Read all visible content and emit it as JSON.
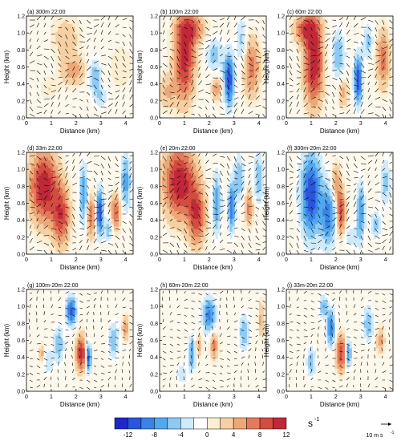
{
  "figure": {
    "x_axis_label": "Distance (km)",
    "y_axis_label": "Height (km)",
    "x_ticks": [
      "0",
      "1",
      "2",
      "3",
      "4"
    ],
    "y_ticks": [
      "0.0",
      "0.2",
      "0.4",
      "0.6",
      "0.8",
      "1.0",
      "1.2"
    ]
  },
  "colorbar": {
    "unit": "s",
    "unit_exponent": "-1",
    "tick_labels": [
      "-12",
      "-8",
      "-4",
      "0",
      "4",
      "8",
      "12"
    ],
    "colors": [
      "#1e28c8",
      "#2a55dc",
      "#3a82e6",
      "#52a8ee",
      "#8ccaf4",
      "#cfeafa",
      "#ffffff",
      "#fbeed2",
      "#f6d0a2",
      "#eea878",
      "#e47a5a",
      "#d44c40",
      "#c0283a"
    ]
  },
  "reference_vector": {
    "label": "10 m s",
    "exponent": "-1"
  },
  "chart_data": [
    {
      "type": "heatmap",
      "title": "(a) 300m 22:00",
      "xlim": [
        0,
        4.3
      ],
      "ylim": [
        0,
        1.2
      ],
      "xlabel": "Distance (km)",
      "ylabel": "Height (km)",
      "features": [
        {
          "x": 1.9,
          "y": 0.55,
          "sx": 0.35,
          "sy": 0.12,
          "value": 5
        },
        {
          "x": 1.6,
          "y": 0.95,
          "sx": 0.45,
          "sy": 0.2,
          "value": 3
        },
        {
          "x": 2.75,
          "y": 0.5,
          "sx": 0.18,
          "sy": 0.14,
          "value": -6
        },
        {
          "x": 3.0,
          "y": 0.25,
          "sx": 0.2,
          "sy": 0.1,
          "value": -4
        },
        {
          "x": 0.9,
          "y": 0.35,
          "sx": 0.3,
          "sy": 0.1,
          "value": 2
        },
        {
          "x": 3.8,
          "y": 0.6,
          "sx": 0.35,
          "sy": 0.2,
          "value": 2
        }
      ]
    },
    {
      "type": "heatmap",
      "title": "(b) 100m 22:00",
      "xlim": [
        0,
        4.3
      ],
      "ylim": [
        0,
        1.2
      ],
      "xlabel": "Distance (km)",
      "ylabel": "Height (km)",
      "features": [
        {
          "x": 1.0,
          "y": 0.7,
          "sx": 0.3,
          "sy": 0.35,
          "value": 11
        },
        {
          "x": 1.3,
          "y": 1.05,
          "sx": 0.4,
          "sy": 0.12,
          "value": 7
        },
        {
          "x": 0.3,
          "y": 0.3,
          "sx": 0.25,
          "sy": 0.15,
          "value": 4
        },
        {
          "x": 2.8,
          "y": 0.45,
          "sx": 0.15,
          "sy": 0.22,
          "value": -12
        },
        {
          "x": 2.3,
          "y": 0.35,
          "sx": 0.15,
          "sy": 0.1,
          "value": 6
        },
        {
          "x": 2.2,
          "y": 0.75,
          "sx": 0.25,
          "sy": 0.15,
          "value": -5
        },
        {
          "x": 3.7,
          "y": 0.6,
          "sx": 0.25,
          "sy": 0.25,
          "value": 7
        },
        {
          "x": 3.3,
          "y": 0.9,
          "sx": 0.15,
          "sy": 0.2,
          "value": -5
        }
      ]
    },
    {
      "type": "heatmap",
      "title": "(c) 60m 22:00",
      "xlim": [
        0,
        4.3
      ],
      "ylim": [
        0,
        1.2
      ],
      "xlabel": "Distance (km)",
      "ylabel": "Height (km)",
      "features": [
        {
          "x": 1.1,
          "y": 0.65,
          "sx": 0.28,
          "sy": 0.35,
          "value": 12
        },
        {
          "x": 0.8,
          "y": 1.05,
          "sx": 0.35,
          "sy": 0.12,
          "value": 8
        },
        {
          "x": 2.9,
          "y": 0.45,
          "sx": 0.12,
          "sy": 0.2,
          "value": -12
        },
        {
          "x": 2.3,
          "y": 0.3,
          "sx": 0.15,
          "sy": 0.12,
          "value": 5
        },
        {
          "x": 2.1,
          "y": 0.75,
          "sx": 0.2,
          "sy": 0.2,
          "value": -6
        },
        {
          "x": 3.9,
          "y": 0.7,
          "sx": 0.2,
          "sy": 0.25,
          "value": 7
        },
        {
          "x": 3.3,
          "y": 0.9,
          "sx": 0.15,
          "sy": 0.15,
          "value": -5
        }
      ]
    },
    {
      "type": "heatmap",
      "title": "(d) 33m 22:00",
      "xlim": [
        0,
        4.3
      ],
      "ylim": [
        0,
        1.2
      ],
      "xlabel": "Distance (km)",
      "ylabel": "Height (km)",
      "features": [
        {
          "x": 0.7,
          "y": 0.8,
          "sx": 0.4,
          "sy": 0.3,
          "value": 12
        },
        {
          "x": 1.4,
          "y": 0.45,
          "sx": 0.25,
          "sy": 0.25,
          "value": 9
        },
        {
          "x": 2.3,
          "y": 0.7,
          "sx": 0.12,
          "sy": 0.25,
          "value": -8
        },
        {
          "x": 2.95,
          "y": 0.5,
          "sx": 0.1,
          "sy": 0.2,
          "value": -12
        },
        {
          "x": 2.6,
          "y": 0.45,
          "sx": 0.12,
          "sy": 0.18,
          "value": 8
        },
        {
          "x": 3.6,
          "y": 0.5,
          "sx": 0.15,
          "sy": 0.15,
          "value": 8
        },
        {
          "x": 3.3,
          "y": 0.3,
          "sx": 0.12,
          "sy": 0.1,
          "value": -6
        },
        {
          "x": 4.0,
          "y": 0.85,
          "sx": 0.15,
          "sy": 0.25,
          "value": -7
        }
      ]
    },
    {
      "type": "heatmap",
      "title": "(e) 20m 22:00",
      "xlim": [
        0,
        4.3
      ],
      "ylim": [
        0,
        1.2
      ],
      "xlabel": "Distance (km)",
      "ylabel": "Height (km)",
      "features": [
        {
          "x": 0.8,
          "y": 0.85,
          "sx": 0.45,
          "sy": 0.3,
          "value": 12
        },
        {
          "x": 1.5,
          "y": 0.45,
          "sx": 0.25,
          "sy": 0.25,
          "value": 9
        },
        {
          "x": 2.3,
          "y": 0.6,
          "sx": 0.12,
          "sy": 0.25,
          "value": -8
        },
        {
          "x": 2.9,
          "y": 0.55,
          "sx": 0.1,
          "sy": 0.2,
          "value": -10
        },
        {
          "x": 3.6,
          "y": 0.55,
          "sx": 0.12,
          "sy": 0.15,
          "value": 7
        },
        {
          "x": 3.2,
          "y": 0.9,
          "sx": 0.15,
          "sy": 0.2,
          "value": -6
        },
        {
          "x": 4.0,
          "y": 0.9,
          "sx": 0.15,
          "sy": 0.2,
          "value": -6
        }
      ]
    },
    {
      "type": "heatmap",
      "title": "(f) 300m-20m 22:00",
      "xlim": [
        0,
        4.3
      ],
      "ylim": [
        0,
        1.2
      ],
      "xlabel": "Distance (km)",
      "ylabel": "Height (km)",
      "features": [
        {
          "x": 1.0,
          "y": 0.7,
          "sx": 0.3,
          "sy": 0.35,
          "value": -12
        },
        {
          "x": 1.7,
          "y": 0.45,
          "sx": 0.2,
          "sy": 0.25,
          "value": -9
        },
        {
          "x": 2.2,
          "y": 0.5,
          "sx": 0.12,
          "sy": 0.2,
          "value": 10
        },
        {
          "x": 2.0,
          "y": 0.85,
          "sx": 0.12,
          "sy": 0.15,
          "value": 6
        },
        {
          "x": 3.0,
          "y": 0.5,
          "sx": 0.12,
          "sy": 0.25,
          "value": -8
        },
        {
          "x": 3.6,
          "y": 0.35,
          "sx": 0.15,
          "sy": 0.12,
          "value": -5
        },
        {
          "x": 4.0,
          "y": 0.85,
          "sx": 0.15,
          "sy": 0.2,
          "value": -5
        },
        {
          "x": 2.6,
          "y": 0.2,
          "sx": 0.2,
          "sy": 0.08,
          "value": -4
        }
      ]
    },
    {
      "type": "heatmap",
      "title": "(g) 100m-20m 22:00",
      "xlim": [
        0,
        4.3
      ],
      "ylim": [
        0,
        1.2
      ],
      "xlabel": "Distance (km)",
      "ylabel": "Height (km)",
      "features": [
        {
          "x": 1.8,
          "y": 0.95,
          "sx": 0.15,
          "sy": 0.12,
          "value": -11
        },
        {
          "x": 2.2,
          "y": 0.45,
          "sx": 0.15,
          "sy": 0.15,
          "value": 11
        },
        {
          "x": 2.5,
          "y": 0.4,
          "sx": 0.08,
          "sy": 0.12,
          "value": -12
        },
        {
          "x": 1.3,
          "y": 0.55,
          "sx": 0.15,
          "sy": 0.15,
          "value": -6
        },
        {
          "x": 3.5,
          "y": 0.6,
          "sx": 0.15,
          "sy": 0.15,
          "value": -6
        },
        {
          "x": 4.0,
          "y": 0.75,
          "sx": 0.1,
          "sy": 0.1,
          "value": 6
        },
        {
          "x": 0.9,
          "y": 0.35,
          "sx": 0.12,
          "sy": 0.1,
          "value": -4
        },
        {
          "x": 0.6,
          "y": 0.45,
          "sx": 0.05,
          "sy": 0.08,
          "value": 6
        }
      ]
    },
    {
      "type": "heatmap",
      "title": "(h) 60m-20m 22:00",
      "xlim": [
        0,
        4.3
      ],
      "ylim": [
        0,
        1.2
      ],
      "xlabel": "Distance (km)",
      "ylabel": "Height (km)",
      "features": [
        {
          "x": 2.0,
          "y": 0.9,
          "sx": 0.2,
          "sy": 0.15,
          "value": -9
        },
        {
          "x": 1.3,
          "y": 0.45,
          "sx": 0.1,
          "sy": 0.15,
          "value": -8
        },
        {
          "x": 1.6,
          "y": 0.55,
          "sx": 0.08,
          "sy": 0.1,
          "value": 5
        },
        {
          "x": 2.2,
          "y": 0.55,
          "sx": 0.12,
          "sy": 0.12,
          "value": 7
        },
        {
          "x": 3.4,
          "y": 0.7,
          "sx": 0.15,
          "sy": 0.15,
          "value": -6
        },
        {
          "x": 4.1,
          "y": 0.85,
          "sx": 0.08,
          "sy": 0.15,
          "value": 5
        },
        {
          "x": 0.9,
          "y": 0.2,
          "sx": 0.15,
          "sy": 0.08,
          "value": -4
        }
      ]
    },
    {
      "type": "heatmap",
      "title": "(i) 33m-20m 22:00",
      "xlim": [
        0,
        4.3
      ],
      "ylim": [
        0,
        1.2
      ],
      "xlabel": "Distance (km)",
      "ylabel": "Height (km)",
      "features": [
        {
          "x": 1.8,
          "y": 0.75,
          "sx": 0.12,
          "sy": 0.15,
          "value": -10
        },
        {
          "x": 2.2,
          "y": 0.45,
          "sx": 0.15,
          "sy": 0.15,
          "value": 10
        },
        {
          "x": 2.5,
          "y": 0.45,
          "sx": 0.08,
          "sy": 0.12,
          "value": -9
        },
        {
          "x": 1.0,
          "y": 0.35,
          "sx": 0.12,
          "sy": 0.12,
          "value": -6
        },
        {
          "x": 1.5,
          "y": 1.0,
          "sx": 0.12,
          "sy": 0.1,
          "value": -6
        },
        {
          "x": 3.3,
          "y": 0.8,
          "sx": 0.15,
          "sy": 0.15,
          "value": -6
        },
        {
          "x": 3.8,
          "y": 0.6,
          "sx": 0.12,
          "sy": 0.12,
          "value": 5
        }
      ]
    }
  ]
}
